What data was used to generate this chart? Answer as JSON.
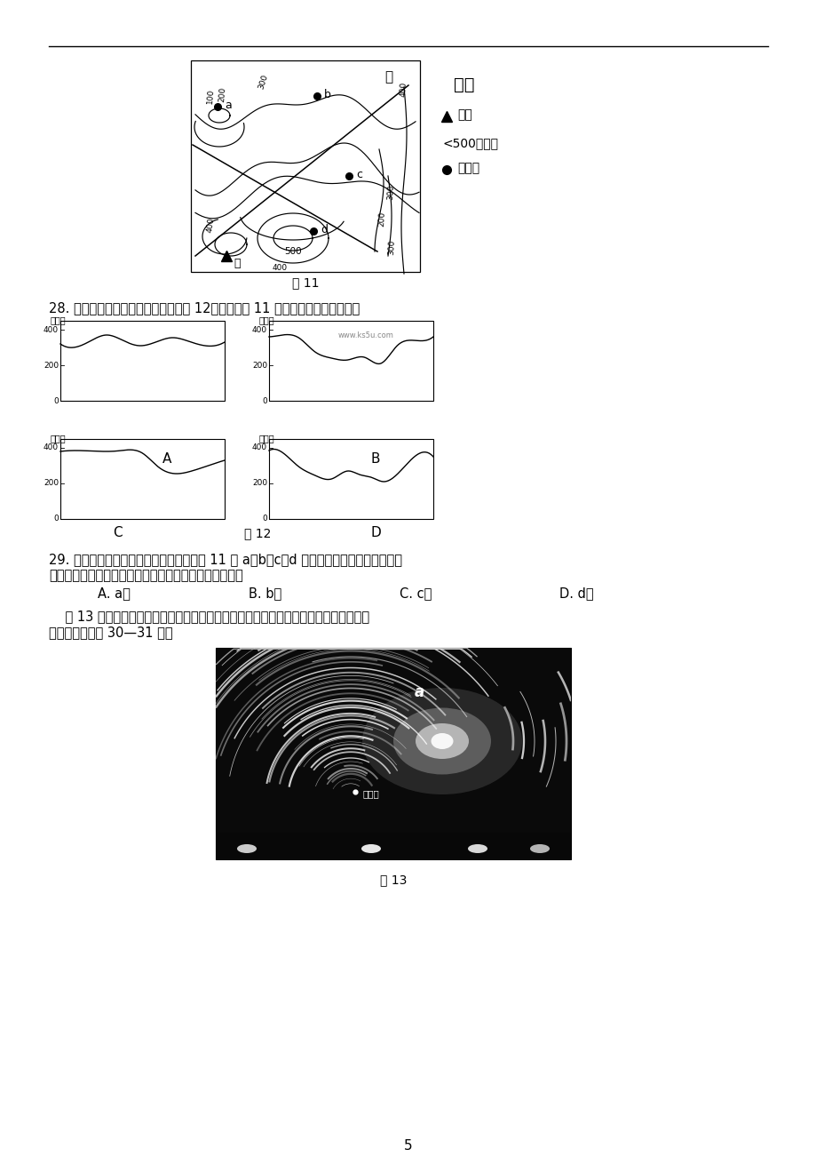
{
  "bg_color": "#ffffff",
  "page_number": "5",
  "q28_text": "28. 在同学们绘制的地形剖面图中（图 12），依据图 11 甲、乙两处连线绘制的是",
  "q29_line1": "29. 为了保护生态环境，当地政府计划将图 11 中 a，b，c，d 四处居民点集中到一处。地理",
  "q29_line2": "小组建议居民点集中建在水源最丰富的地方，该地应选在",
  "q29_opts": [
    "A. a处",
    "B. b处",
    "C. c处",
    "D. d处"
  ],
  "fig13_line1": "    图 13 所示照片是摄影师在夜晚采用连续曝光技术拍摄的。照片中的弧线为恒星视运动",
  "fig13_line2": "轨迹。读图回答 30—31 题。",
  "legend_title": "图例",
  "legend_peak": "山峰",
  "legend_contour": "<500等高线",
  "legend_resident": "居民点",
  "fig11_cap": "图 11",
  "fig12_cap": "图 12",
  "fig13_cap": "图 13",
  "watermark": "www.ks5u.com"
}
